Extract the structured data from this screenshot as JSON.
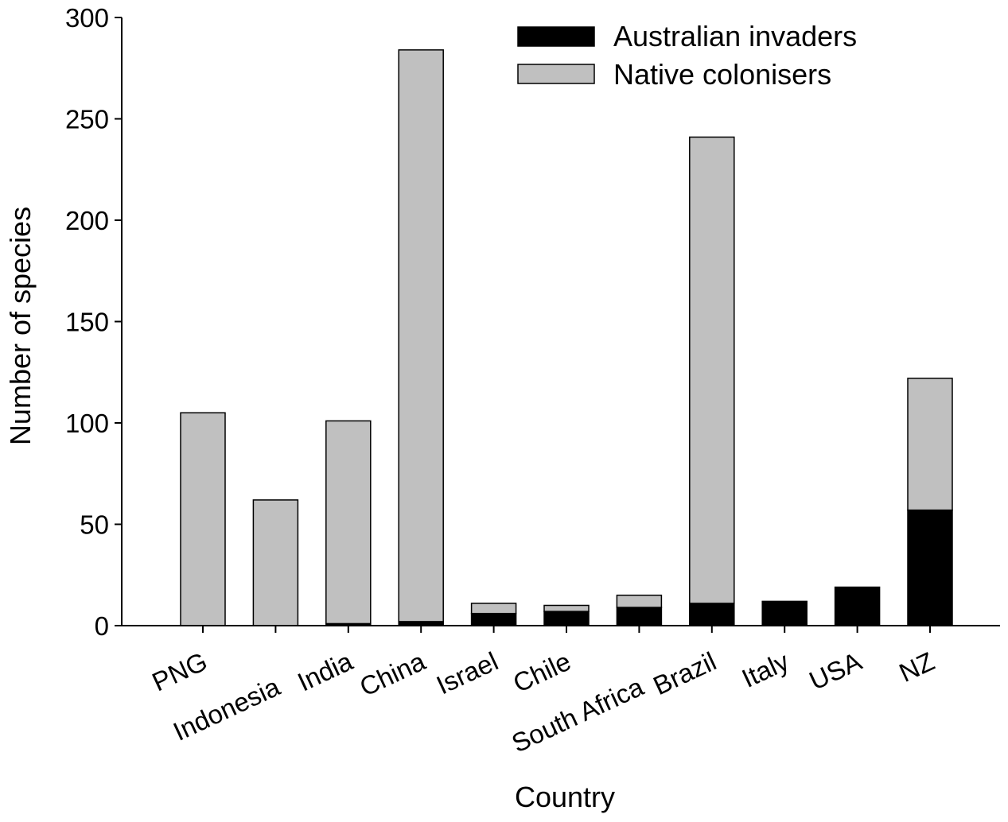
{
  "colors": {
    "australian_invaders": "#000000",
    "native_colonisers": "#c0c0c0",
    "axis": "#000000",
    "background": "#ffffff"
  },
  "chart_data": {
    "type": "bar",
    "stacked": true,
    "title": "",
    "xlabel": "Country",
    "ylabel": "Number of species",
    "ylim": [
      0,
      300
    ],
    "yticks": [
      0,
      50,
      100,
      150,
      200,
      250,
      300
    ],
    "grid": false,
    "legend": {
      "position": "top-right",
      "entries": [
        "Australian invaders",
        "Native colonisers"
      ]
    },
    "categories": [
      "PNG",
      "Indonesia",
      "India",
      "China",
      "Israel",
      "Chile",
      "South Africa",
      "Brazil",
      "Italy",
      "USA",
      "NZ"
    ],
    "series": [
      {
        "name": "Australian invaders",
        "color": "#000000",
        "values": [
          0,
          0,
          1,
          2,
          6,
          7,
          9,
          11,
          12,
          19,
          57
        ]
      },
      {
        "name": "Native colonisers",
        "color": "#c0c0c0",
        "values": [
          105,
          62,
          100,
          282,
          5,
          3,
          6,
          230,
          0,
          0,
          65
        ]
      }
    ]
  }
}
